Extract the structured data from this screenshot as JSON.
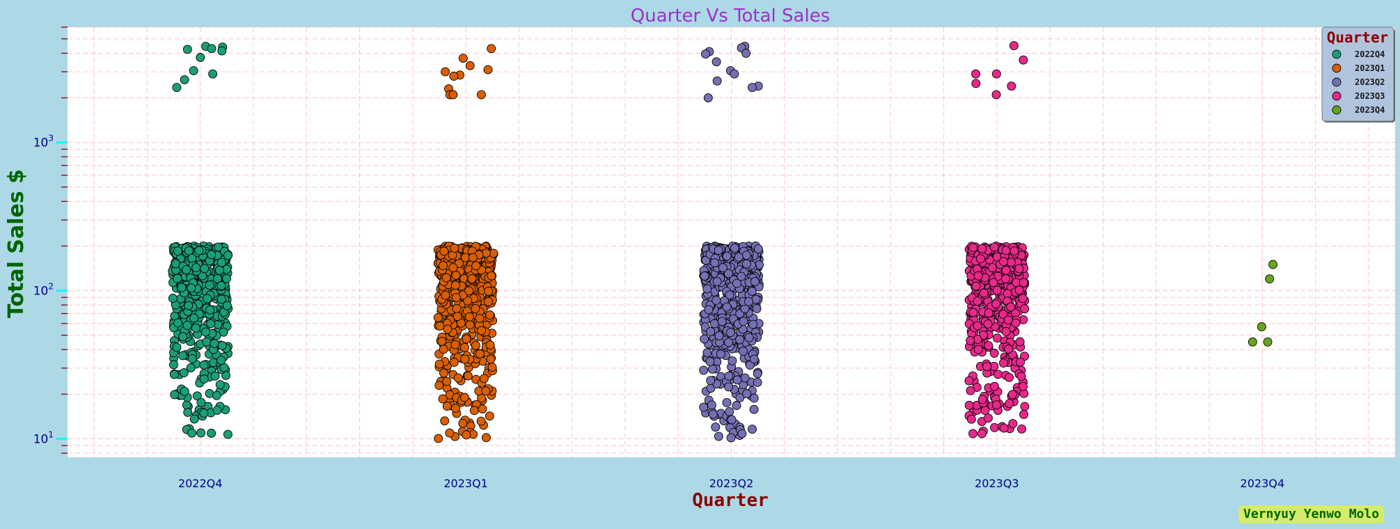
{
  "colors": {
    "figure_background": "#add8e6",
    "plot_background": "#ffffff",
    "grid": "#ffb6c1",
    "title": "#9932cc",
    "xlabel": "#8b0000",
    "ylabel": "#006400",
    "tick_labels": "#00008b",
    "major_ticks": "#00ffff",
    "minor_ticks": "#8b0000",
    "legend_background": "#b0c4de",
    "point_edge": "#000000"
  },
  "credit": "Vernyuy Yenwo Molo",
  "chart_data": {
    "type": "scatter",
    "variant": "strip-plot (jittered categorical scatter)",
    "title": "Quarter Vs Total Sales",
    "xlabel": "Quarter",
    "ylabel": "Total Sales $",
    "categories": [
      "2022Q4",
      "2023Q1",
      "2023Q2",
      "2023Q3",
      "2023Q4"
    ],
    "y_scale": "log",
    "ylim": [
      7.5,
      6000
    ],
    "y_major_ticks": [
      10,
      100,
      1000
    ],
    "y_tick_labels": [
      "10^1",
      "10^2",
      "10^3"
    ],
    "grid": true,
    "legend": {
      "title": "Quarter",
      "position": "top-right",
      "entries": [
        "2022Q4",
        "2023Q1",
        "2023Q2",
        "2023Q3",
        "2023Q4"
      ]
    },
    "series": [
      {
        "name": "2022Q4",
        "color": "#1b9e77",
        "dense_range": [
          10,
          200
        ],
        "dense_point_count_approx": 520,
        "outliers": [
          4250,
          4450,
          4400,
          3750,
          4300,
          4150,
          3050,
          2900,
          2650,
          2350
        ]
      },
      {
        "name": "2023Q1",
        "color": "#d95f02",
        "dense_range": [
          10,
          200
        ],
        "dense_point_count_approx": 560,
        "outliers": [
          4300,
          3700,
          3300,
          3100,
          3000,
          2850,
          2800,
          2300,
          2100,
          2100,
          2100
        ]
      },
      {
        "name": "2023Q2",
        "color": "#7570b3",
        "dense_range": [
          10,
          200
        ],
        "dense_point_count_approx": 520,
        "outliers": [
          4450,
          4350,
          4100,
          4000,
          3950,
          3500,
          3050,
          2900,
          2600,
          2400,
          2350,
          2000
        ]
      },
      {
        "name": "2023Q3",
        "color": "#e7298a",
        "dense_range": [
          10,
          200
        ],
        "dense_point_count_approx": 510,
        "outliers": [
          4500,
          3600,
          2900,
          2900,
          2500,
          2400,
          2100
        ]
      },
      {
        "name": "2023Q4",
        "color": "#66a61e",
        "dense_range": null,
        "dense_point_count_approx": 0,
        "outliers": [],
        "points": [
          150,
          120,
          57,
          45,
          45
        ]
      }
    ]
  }
}
